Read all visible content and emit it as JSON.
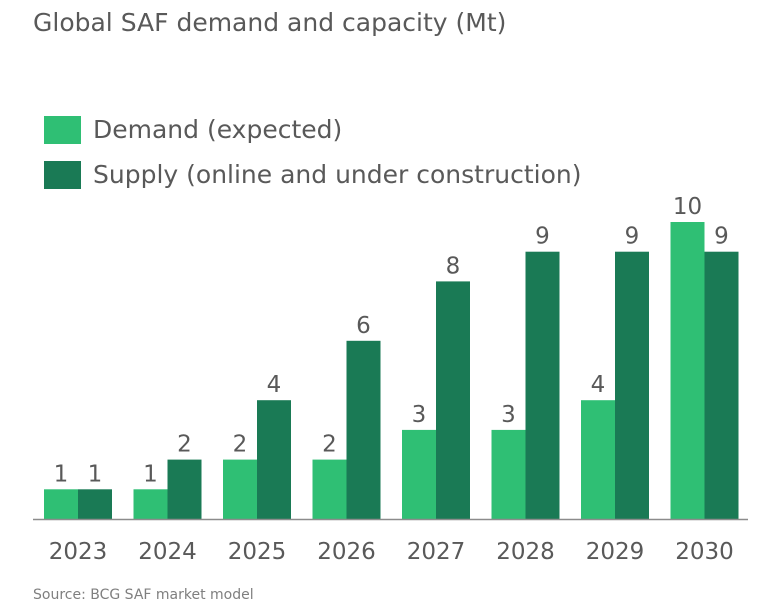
{
  "title": "Global SAF demand and capacity (Mt)",
  "source": "Source: BCG SAF market model",
  "colors": {
    "demand": "#2fbf74",
    "supply": "#1a7a55",
    "axis": "#8c8c8c",
    "text": "#595959"
  },
  "chart_data": {
    "type": "bar",
    "title": "Global SAF demand and capacity (Mt)",
    "categories": [
      "2023",
      "2024",
      "2025",
      "2026",
      "2027",
      "2028",
      "2029",
      "2030"
    ],
    "series": [
      {
        "name": "Demand (expected)",
        "values": [
          1,
          1,
          2,
          2,
          3,
          3,
          4,
          10
        ],
        "labels": [
          "1",
          "1",
          "2",
          "2",
          "3",
          "3",
          "4",
          "10"
        ]
      },
      {
        "name": "Supply (online and under construction)",
        "values": [
          1,
          2,
          4,
          6,
          8,
          9,
          9,
          9
        ],
        "labels": [
          "1",
          "2",
          "4",
          "6",
          "8",
          "9",
          "9",
          "9"
        ]
      }
    ],
    "ylim": [
      0,
      10
    ],
    "grid": false,
    "legend": "top-left"
  }
}
